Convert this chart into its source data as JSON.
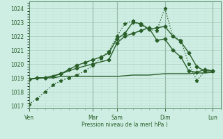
{
  "background_color": "#ceeee4",
  "grid_color_major": "#aaccbb",
  "grid_color_minor": "#c4e4d8",
  "line_color": "#2a5f2a",
  "ylabel": "Pression niveau de la mer( hPa )",
  "ylim": [
    1016.8,
    1024.5
  ],
  "yticks": [
    1017,
    1018,
    1019,
    1020,
    1021,
    1022,
    1023,
    1024
  ],
  "x_day_labels": [
    "Ven",
    "Mar",
    "Sam",
    "Dim",
    "Lun"
  ],
  "x_day_positions": [
    0,
    8,
    11,
    17,
    23
  ],
  "xlim": [
    0,
    24
  ],
  "num_x_cells": 24,
  "series": [
    {
      "x": [
        0,
        1,
        2,
        3,
        4,
        5,
        6,
        7,
        8,
        9,
        10,
        11,
        12,
        13,
        14,
        15,
        16,
        17,
        18,
        19,
        20,
        21,
        22,
        23
      ],
      "y": [
        1018.9,
        1019.0,
        1019.0,
        1019.0,
        1019.1,
        1019.1,
        1019.1,
        1019.1,
        1019.1,
        1019.1,
        1019.1,
        1019.1,
        1019.15,
        1019.2,
        1019.2,
        1019.2,
        1019.25,
        1019.3,
        1019.3,
        1019.3,
        1019.3,
        1019.35,
        1019.35,
        1019.4
      ],
      "marker": null,
      "linestyle": "-",
      "linewidth": 1.0,
      "color": "#2a5f2a"
    },
    {
      "x": [
        0,
        2,
        4,
        6,
        8,
        10,
        11,
        12,
        13,
        14,
        15,
        16,
        17,
        18,
        19,
        20,
        21,
        22,
        23
      ],
      "y": [
        1018.9,
        1019.0,
        1019.3,
        1019.7,
        1020.0,
        1020.3,
        1021.5,
        1022.0,
        1022.2,
        1022.4,
        1022.6,
        1021.7,
        1021.8,
        1021.0,
        1020.5,
        1019.5,
        1019.4,
        1019.6,
        1019.5
      ],
      "marker": "D",
      "linestyle": "-",
      "linewidth": 1.0,
      "color": "#2a5f2a"
    },
    {
      "x": [
        0,
        1,
        2,
        3,
        4,
        5,
        6,
        7,
        8,
        9,
        10,
        11,
        12,
        13,
        14,
        15,
        16,
        17,
        18,
        19,
        20,
        21,
        22,
        23
      ],
      "y": [
        1017.1,
        1017.5,
        1018.0,
        1018.5,
        1018.8,
        1019.0,
        1019.2,
        1019.5,
        1019.9,
        1020.4,
        1020.9,
        1022.0,
        1022.9,
        1023.1,
        1022.8,
        1022.5,
        1022.4,
        1024.0,
        1022.0,
        1021.7,
        1020.0,
        1018.8,
        1019.5,
        1019.5
      ],
      "marker": "*",
      "linestyle": ":",
      "linewidth": 1.0,
      "color": "#2a5f2a"
    },
    {
      "x": [
        0,
        1,
        2,
        3,
        4,
        5,
        6,
        7,
        8,
        9,
        10,
        11,
        12,
        13,
        14,
        15,
        16,
        17,
        18,
        19,
        20,
        21,
        22,
        23
      ],
      "y": [
        1018.9,
        1019.0,
        1019.0,
        1019.1,
        1019.3,
        1019.6,
        1019.9,
        1020.1,
        1020.3,
        1020.5,
        1020.8,
        1021.8,
        1022.2,
        1023.0,
        1022.9,
        1022.5,
        1022.6,
        1022.7,
        1022.0,
        1021.6,
        1020.8,
        1019.8,
        1019.5,
        1019.5
      ],
      "marker": "D",
      "linestyle": "-",
      "linewidth": 1.0,
      "color": "#2a5f2a"
    }
  ],
  "vline_positions": [
    0,
    8,
    11,
    17,
    23
  ],
  "figsize": [
    3.2,
    2.0
  ],
  "dpi": 100
}
